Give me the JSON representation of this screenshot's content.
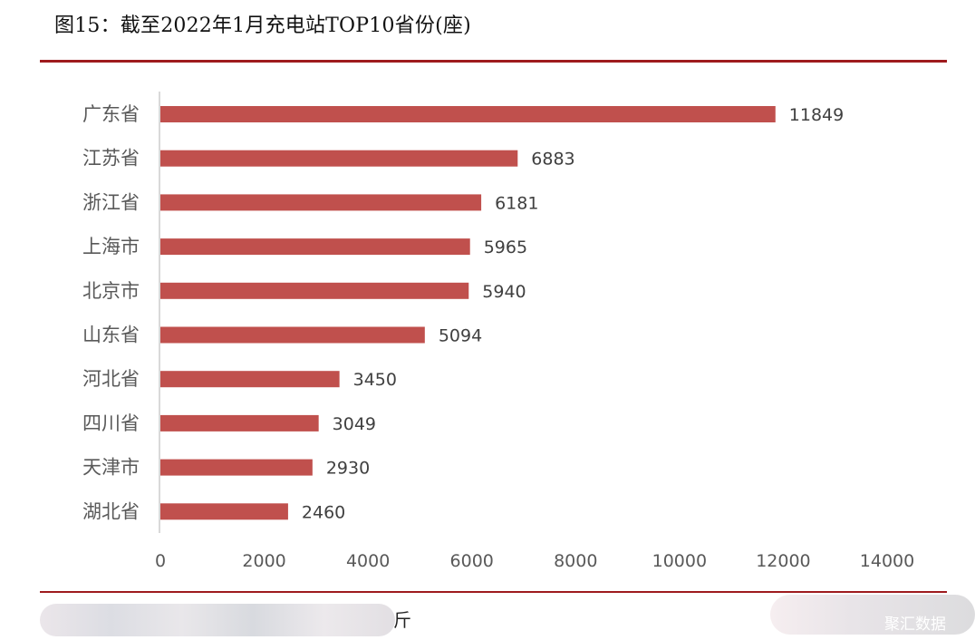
{
  "figure_title": "图15：截至2022年1月充电站TOP10省份(座)",
  "source_tail": "斤",
  "watermark": "聚汇数据",
  "colors": {
    "bar": "#c0504d",
    "rule": "#9e1b1e",
    "axis": "#d9d9d9"
  },
  "chart_data": {
    "type": "bar",
    "orientation": "horizontal",
    "categories": [
      "广东省",
      "江苏省",
      "浙江省",
      "上海市",
      "北京市",
      "山东省",
      "河北省",
      "四川省",
      "天津市",
      "湖北省"
    ],
    "values": [
      11849,
      6883,
      6181,
      5965,
      5940,
      5094,
      3450,
      3049,
      2930,
      2460
    ],
    "value_labels": [
      "11849",
      "6883",
      "6181",
      "5965",
      "5940",
      "5094",
      "3450",
      "3049",
      "2930",
      "2460"
    ],
    "xlim": [
      0,
      14000
    ],
    "xticks": [
      0,
      2000,
      4000,
      6000,
      8000,
      10000,
      12000,
      14000
    ],
    "xtick_labels": [
      "0",
      "2000",
      "4000",
      "6000",
      "8000",
      "10000",
      "12000",
      "14000"
    ],
    "grid": false,
    "legend": "none"
  }
}
